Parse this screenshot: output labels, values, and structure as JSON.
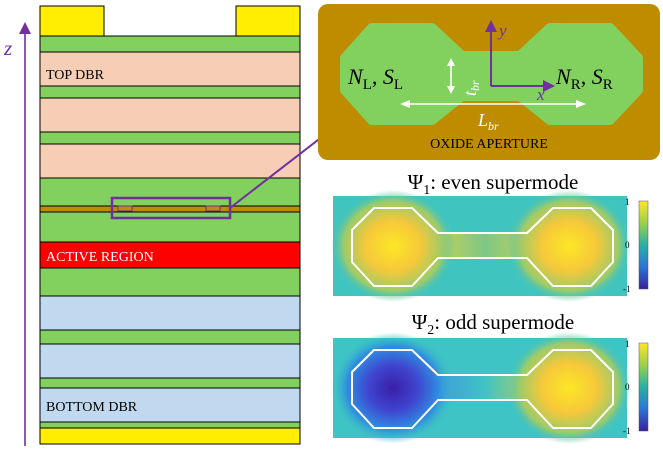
{
  "axis_z": {
    "label": "z"
  },
  "stack": {
    "top_label": "TOP DBR",
    "active_label": "ACTIVE REGION",
    "bottom_label": "BOTTOM DBR"
  },
  "inset": {
    "left_N": "N",
    "left_N_sub": "L",
    "left_S": "S",
    "left_S_sub": "L",
    "sep": ",",
    "right_N": "N",
    "right_N_sub": "R",
    "right_S": "S",
    "right_S_sub": "R",
    "x_axis": "x",
    "y_axis": "y",
    "t_label": "t",
    "t_sub": "br",
    "L_label": "L",
    "L_sub": "br",
    "aperture_label": "OXIDE APERTURE"
  },
  "mode1": {
    "psi": "Ψ",
    "sub": "1",
    "desc": ": even supermode"
  },
  "mode2": {
    "psi": "Ψ",
    "sub": "2",
    "desc": ": odd supermode"
  },
  "colorbar": {
    "max": "1",
    "mid": "0",
    "min": "-1"
  },
  "colors": {
    "gold": "#ffee00",
    "green": "#82d15e",
    "peach": "#f6cdb5",
    "blue": "#c1d9ee",
    "red": "#ff0000",
    "oxide": "#bf8c00",
    "purple": "#7030a0",
    "field_bg": "#3ec4c4"
  }
}
